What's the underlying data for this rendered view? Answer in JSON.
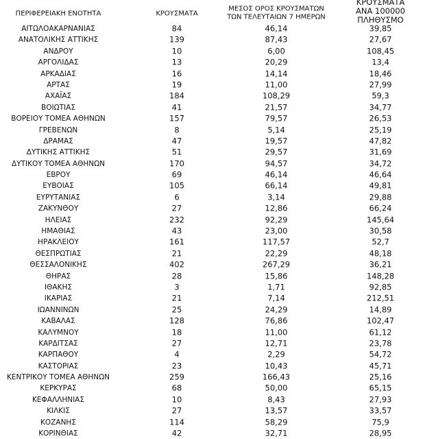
{
  "table": {
    "headers": [
      "ΠΕΡΙΦΕΡΕΙΑΚΗ ΕΝΟΤΗΤΑ",
      "ΚΡΟΥΣΜΑΤΑ",
      "ΜΕΣΟΣ ΟΡΟΣ ΚΡΟΥΣΜΑΤΩΝ\nΤΩΝ ΤΕΛΕΥΤΑΙΩΝ 7 ΗΜΕΡΩΝ",
      "ΚΡΟΥΣΜΑΤΑ ΑΝΑ 100000\nΠΛΗΘΥΣΜΟ"
    ],
    "rows": [
      [
        "ΑΙΤΩΛΟΑΚΑΡΝΑΝΙΑΣ",
        "84",
        "46,14",
        "39,85"
      ],
      [
        "ΑΝΑΤΟΛΙΚΗΣ ΑΤΤΙΚΗΣ",
        "139",
        "87,43",
        "27,67"
      ],
      [
        "ΑΝΔΡΟΥ",
        "10",
        "6,00",
        "108,45"
      ],
      [
        "ΑΡΓΟΛΙΔΑΣ",
        "13",
        "20,29",
        "13,4"
      ],
      [
        "ΑΡΚΑΔΙΑΣ",
        "16",
        "14,14",
        "18,46"
      ],
      [
        "ΑΡΤΑΣ",
        "19",
        "11,00",
        "27,99"
      ],
      [
        "ΑΧΑΪΑΣ",
        "184",
        "108,29",
        "59,3"
      ],
      [
        "ΒΟΙΩΤΙΑΣ",
        "41",
        "21,57",
        "34,77"
      ],
      [
        "ΒΟΡΕΙΟΥ ΤΟΜΕΑ ΑΘΗΝΩΝ",
        "157",
        "79,57",
        "26,53"
      ],
      [
        "ΓΡΕΒΕΝΩΝ",
        "8",
        "5,14",
        "25,19"
      ],
      [
        "ΔΡΑΜΑΣ",
        "47",
        "19,57",
        "47,82"
      ],
      [
        "ΔΥΤΙΚΗΣ ΑΤΤΙΚΗΣ",
        "51",
        "29,57",
        "31,69"
      ],
      [
        "ΔΥΤΙΚΟΥ ΤΟΜΕΑ ΑΘΗΝΩΝ",
        "170",
        "94,57",
        "34,72"
      ],
      [
        "ΕΒΡΟΥ",
        "69",
        "46,14",
        "46,64"
      ],
      [
        "ΕΥΒΟΙΑΣ",
        "105",
        "66,14",
        "49,81"
      ],
      [
        "ΕΥΡΥΤΑΝΙΑΣ",
        "6",
        "3,14",
        "29,88"
      ],
      [
        "ΖΑΚΥΝΘΟΥ",
        "27",
        "12,86",
        "66,24"
      ],
      [
        "ΗΛΕΙΑΣ",
        "232",
        "92,29",
        "145,64"
      ],
      [
        "ΗΜΑΘΙΑΣ",
        "43",
        "23,00",
        "30,58"
      ],
      [
        "ΗΡΑΚΛΕΙΟΥ",
        "161",
        "117,57",
        "52,7"
      ],
      [
        "ΘΕΣΠΡΩΤΙΑΣ",
        "21",
        "22,29",
        "48,18"
      ],
      [
        "ΘΕΣΣΑΛΟΝΙΚΗΣ",
        "402",
        "267,29",
        "36,21"
      ],
      [
        "ΘΗΡΑΣ",
        "28",
        "15,86",
        "148,28"
      ],
      [
        "ΙΘΑΚΗΣ",
        "3",
        "1,71",
        "92,85"
      ],
      [
        "ΙΚΑΡΙΑΣ",
        "21",
        "7,14",
        "212,51"
      ],
      [
        "ΙΩΑΝΝΙΝΩΝ",
        "25",
        "24,29",
        "14,89"
      ],
      [
        "ΚΑΒΑΛΑΣ",
        "128",
        "76,86",
        "102,47"
      ],
      [
        "ΚΑΛΥΜΝΟΥ",
        "18",
        "11,00",
        "61,12"
      ],
      [
        "ΚΑΡΔΙΤΣΑΣ",
        "27",
        "12,71",
        "23,78"
      ],
      [
        "ΚΑΡΠΑΘΟΥ",
        "4",
        "2,29",
        "54,72"
      ],
      [
        "ΚΑΣΤΟΡΙΑΣ",
        "23",
        "10,43",
        "45,71"
      ],
      [
        "ΚΕΝΤΡΙΚΟΥ ΤΟΜΕΑ ΑΘΗΝΩΝ",
        "259",
        "166,43",
        "25,16"
      ],
      [
        "ΚΕΡΚΥΡΑΣ",
        "68",
        "50,00",
        "65,15"
      ],
      [
        "ΚΕΦΑΛΛΗΝΙΑΣ",
        "10",
        "8,43",
        "27,93"
      ],
      [
        "ΚΙΛΚΙΣ",
        "27",
        "13,57",
        "33,57"
      ],
      [
        "ΚΟΖΑΝΗΣ",
        "114",
        "58,29",
        "75,9"
      ],
      [
        "ΚΟΡΙΝΘΙΑΣ",
        "42",
        "32,71",
        "28,95"
      ]
    ]
  }
}
